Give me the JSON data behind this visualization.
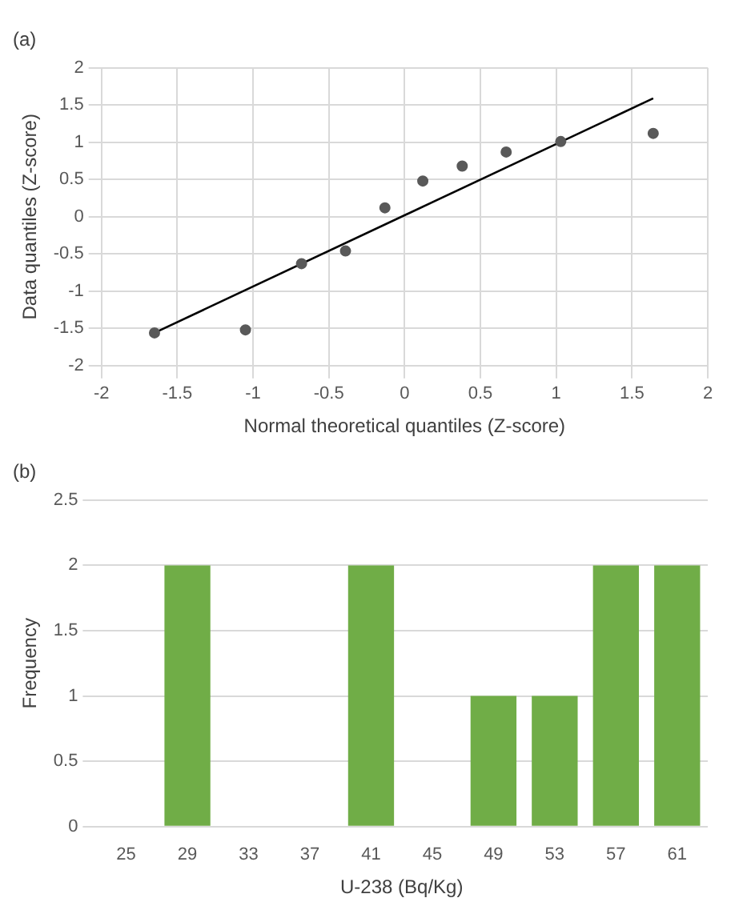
{
  "chart_data": [
    {
      "type": "scatter",
      "title": "(a)",
      "xlabel": "Normal theoretical quantiles (Z-score)",
      "ylabel": "Data quantiles (Z-score)",
      "xlim": [
        -2,
        2
      ],
      "xticks": [
        -2,
        -1.5,
        -1,
        -0.5,
        0,
        0.5,
        1,
        1.5,
        2
      ],
      "ylim": [
        -2,
        2
      ],
      "yticks": [
        -2,
        -1.5,
        -1,
        -0.5,
        0,
        0.5,
        1,
        1.5,
        2
      ],
      "grid": true,
      "legend": false,
      "marker": "circle",
      "series": [
        {
          "type": "scatter",
          "color": "#595959",
          "x": [
            -1.65,
            -1.05,
            -0.68,
            -0.39,
            -0.13,
            0.12,
            0.38,
            0.67,
            1.03,
            1.64
          ],
          "values": [
            -1.56,
            -1.52,
            -0.63,
            -0.46,
            0.12,
            0.48,
            0.68,
            0.87,
            1.01,
            1.12
          ]
        },
        {
          "type": "line",
          "color": "#000000",
          "marker": "none",
          "x": [
            -1.65,
            1.64
          ],
          "values": [
            -1.56,
            1.59
          ]
        }
      ]
    },
    {
      "type": "bar",
      "title": "(b)",
      "xlabel": "U-238 (Bq/Kg)",
      "ylabel": "Frequency",
      "categories": [
        "25",
        "29",
        "33",
        "37",
        "41",
        "45",
        "49",
        "53",
        "57",
        "61"
      ],
      "values": [
        0,
        2,
        0,
        0,
        2,
        0,
        1,
        1,
        2,
        2
      ],
      "color": "#70ad47",
      "ylim": [
        0,
        2.5
      ],
      "yticks": [
        0,
        0.5,
        1,
        1.5,
        2,
        2.5
      ],
      "grid": "y",
      "legend": false
    }
  ]
}
